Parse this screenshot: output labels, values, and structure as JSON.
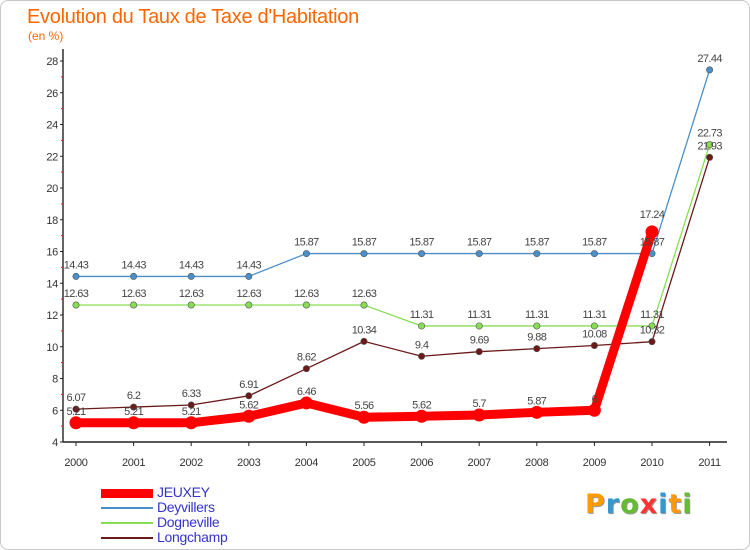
{
  "title": "Evolution du Taux de Taxe d'Habitation",
  "subtitle": "(en %)",
  "logo": {
    "text": "Proxiti",
    "letters": [
      "P",
      "r",
      "o",
      "x",
      "i",
      "t",
      "i"
    ],
    "colors": [
      "#ff9900",
      "#3399cc",
      "#66bb33",
      "#ff3333",
      "#3399cc",
      "#ff9900",
      "#66bb33"
    ]
  },
  "chart_data": {
    "type": "line",
    "title": "Evolution du Taux de Taxe d'Habitation",
    "subtitle": "(en %)",
    "categories": [
      "2000",
      "2001",
      "2002",
      "2003",
      "2004",
      "2005",
      "2006",
      "2007",
      "2008",
      "2009",
      "2010",
      "2011"
    ],
    "y_ticks": [
      "4",
      "6",
      "8",
      "10",
      "12",
      "14",
      "16",
      "18",
      "20",
      "22",
      "24",
      "26",
      "28"
    ],
    "ylim": [
      4,
      28
    ],
    "grid": false,
    "legend_position": "bottom-left",
    "series": [
      {
        "name": "JEUXEY",
        "color": "#ff0000",
        "values": [
          5.21,
          5.21,
          5.21,
          5.62,
          6.46,
          5.56,
          5.62,
          5.7,
          5.87,
          6,
          17.24,
          null
        ],
        "labels": [
          "5.21",
          "5.21",
          "5.21",
          "5.62",
          "6.46",
          "5.56",
          "5.62",
          "5.7",
          "5.87",
          "6",
          "17.24",
          ""
        ]
      },
      {
        "name": "Deyvillers",
        "color": "#4a8fc8",
        "values": [
          14.43,
          14.43,
          14.43,
          14.43,
          15.87,
          15.87,
          15.87,
          15.87,
          15.87,
          15.87,
          15.87,
          27.44
        ],
        "labels": [
          "14.43",
          "14.43",
          "14.43",
          "14.43",
          "15.87",
          "15.87",
          "15.87",
          "15.87",
          "15.87",
          "15.87",
          "15.87",
          "27.44"
        ]
      },
      {
        "name": "Dogneville",
        "color": "#88dd55",
        "values": [
          12.63,
          12.63,
          12.63,
          12.63,
          12.63,
          12.63,
          11.31,
          11.31,
          11.31,
          11.31,
          11.31,
          22.73
        ],
        "labels": [
          "12.63",
          "12.63",
          "12.63",
          "12.63",
          "12.63",
          "12.63",
          "11.31",
          "11.31",
          "11.31",
          "11.31",
          "11.31",
          "22.73"
        ]
      },
      {
        "name": "Longchamp",
        "color": "#6b1a1a",
        "values": [
          6.07,
          6.2,
          6.33,
          6.91,
          8.62,
          10.34,
          9.4,
          9.69,
          9.88,
          10.08,
          10.32,
          21.93
        ],
        "labels": [
          "6.07",
          "6.2",
          "6.33",
          "6.91",
          "8.62",
          "10.34",
          "9.4",
          "9.69",
          "9.88",
          "10.08",
          "10.32",
          "21.93"
        ]
      }
    ]
  }
}
